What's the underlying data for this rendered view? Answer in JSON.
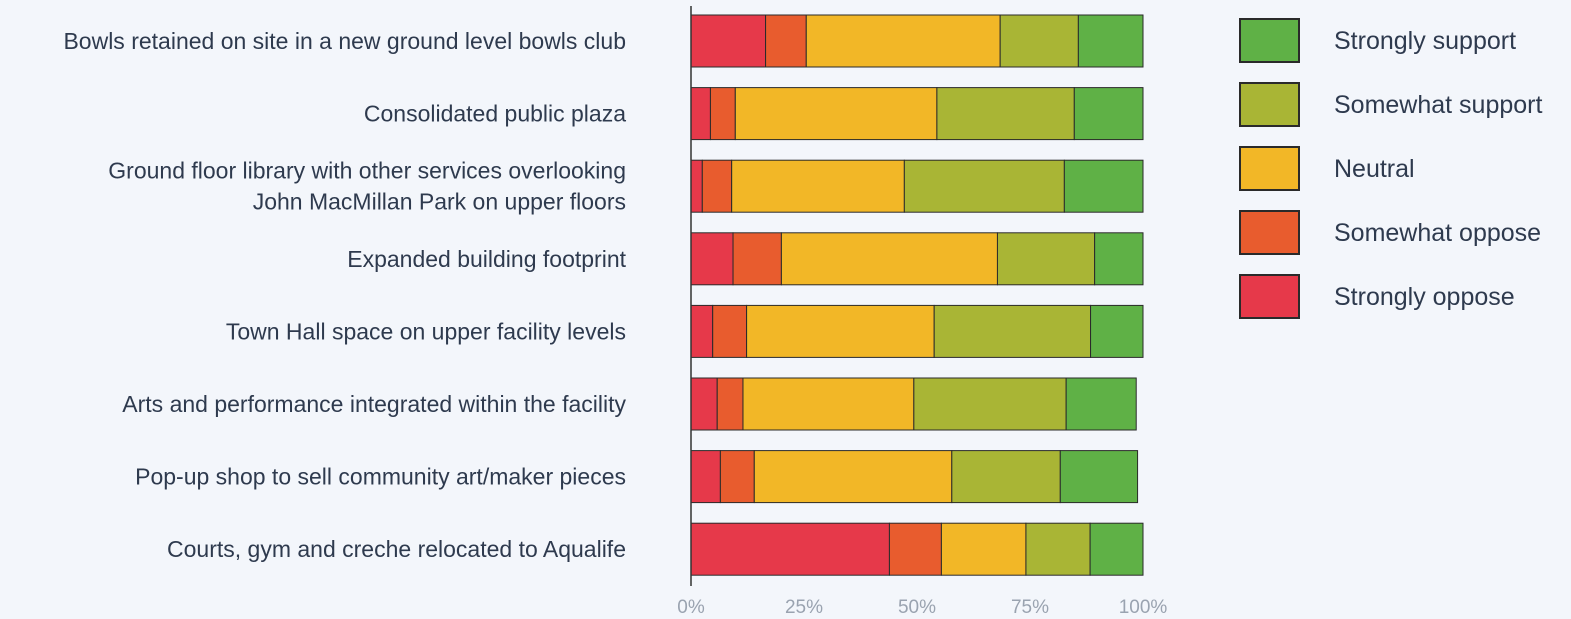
{
  "chart_data": {
    "type": "bar",
    "orientation": "horizontal",
    "stacked": true,
    "categories": [
      [
        "Bowls retained on site in a new ground level bowls club"
      ],
      [
        "Consolidated public plaza"
      ],
      [
        "Ground floor library with other services overlooking",
        "John MacMillan Park on upper floors"
      ],
      [
        "Expanded building footprint"
      ],
      [
        "Town Hall space on upper facility levels"
      ],
      [
        "Arts and performance integrated within the facility"
      ],
      [
        "Pop-up shop to sell community art/maker pieces"
      ],
      [
        "Courts, gym and creche relocated to Aqualife"
      ]
    ],
    "series": [
      {
        "name": "Strongly oppose",
        "color": "#e6394a",
        "values": [
          16.5,
          4.3,
          2.5,
          9.3,
          4.8,
          5.8,
          6.5,
          43.9
        ]
      },
      {
        "name": "Somewhat oppose",
        "color": "#e85c2e",
        "values": [
          9.0,
          5.5,
          6.5,
          10.7,
          7.5,
          5.7,
          7.5,
          11.5
        ]
      },
      {
        "name": "Neutral",
        "color": "#f2b727",
        "values": [
          42.9,
          44.6,
          38.2,
          47.8,
          41.5,
          37.8,
          43.7,
          18.7
        ]
      },
      {
        "name": "Somewhat support",
        "color": "#a9b535",
        "values": [
          17.3,
          30.4,
          35.4,
          21.5,
          34.6,
          33.7,
          24.0,
          14.2
        ]
      },
      {
        "name": "Strongly support",
        "color": "#5fb146",
        "values": [
          14.3,
          15.2,
          17.4,
          10.7,
          11.6,
          15.5,
          17.1,
          11.7
        ]
      }
    ],
    "x_ticks": [
      "0%",
      "25%",
      "50%",
      "75%",
      "100%"
    ],
    "xlim": [
      0,
      100
    ],
    "legend_position": "right",
    "legend_order": [
      "Strongly support",
      "Somewhat support",
      "Neutral",
      "Somewhat oppose",
      "Strongly oppose"
    ],
    "grid": false
  }
}
